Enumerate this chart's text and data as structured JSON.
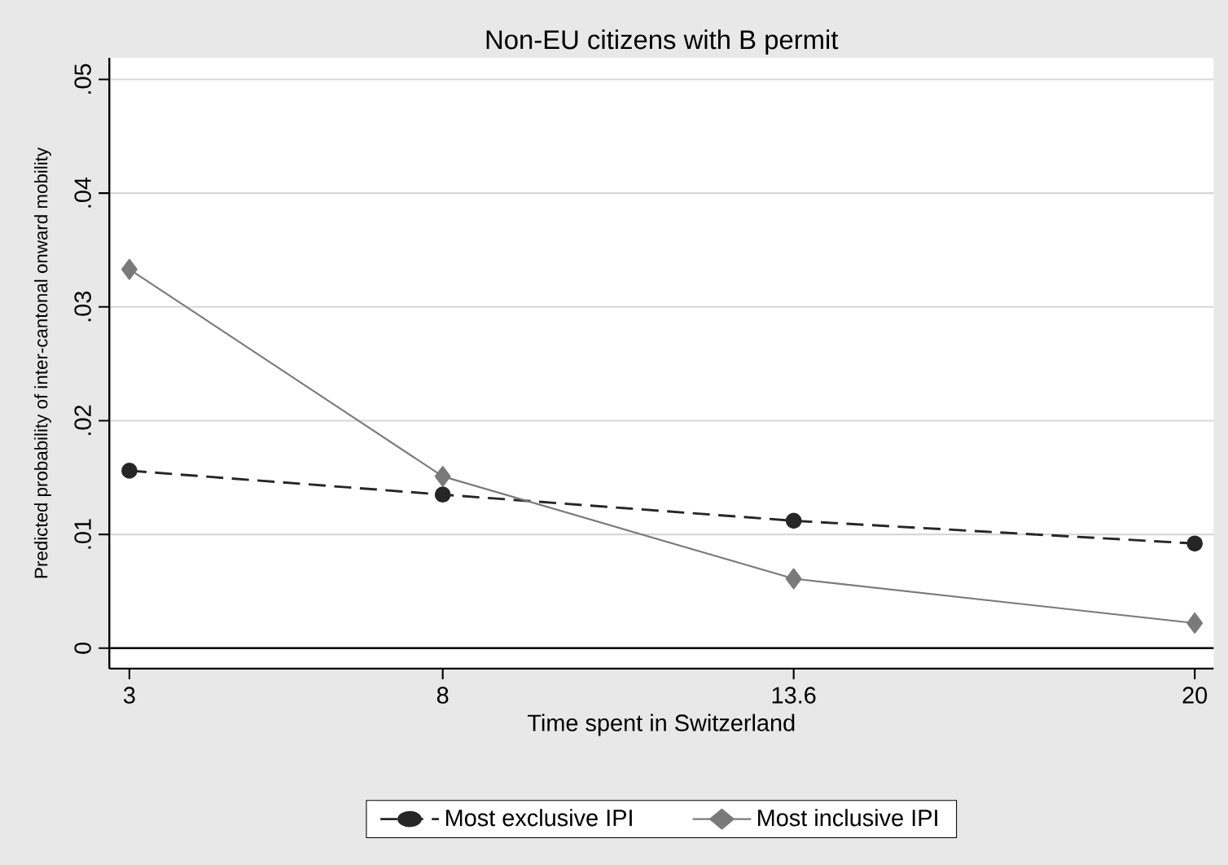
{
  "chart_data": {
    "type": "line",
    "title": "Non-EU citizens with B permit",
    "xlabel": "Time spent in Switzerland",
    "ylabel": "Predicted probability of inter-cantonal onward mobility",
    "x": [
      3,
      8,
      13.6,
      20
    ],
    "series": [
      {
        "name": "Most exclusive IPI",
        "color": "#262626",
        "values": [
          0.0156,
          0.0135,
          0.0112,
          0.0092
        ],
        "marker": "circle",
        "line_style": "dashed"
      },
      {
        "name": "Most inclusive IPI",
        "color": "#7a7a7a",
        "values": [
          0.0333,
          0.0151,
          0.0061,
          0.0022
        ],
        "marker": "diamond",
        "line_style": "solid"
      }
    ],
    "xlim": [
      2.68,
      20.3
    ],
    "ylim": [
      -0.0018,
      0.0519
    ],
    "xticks": [
      3,
      8,
      13.6,
      20
    ],
    "yticks": [
      0,
      {
        "value": 0.01,
        "label": ".01"
      },
      {
        "value": 0.02,
        "label": ".02"
      },
      {
        "value": 0.03,
        "label": ".03"
      },
      {
        "value": 0.04,
        "label": ".04"
      },
      {
        "value": 0.05,
        "label": ".05"
      }
    ],
    "grid": "y",
    "legend": "bottom",
    "ref_lines": [
      {
        "axis": "y",
        "value": 0,
        "color": "#000000"
      }
    ]
  }
}
